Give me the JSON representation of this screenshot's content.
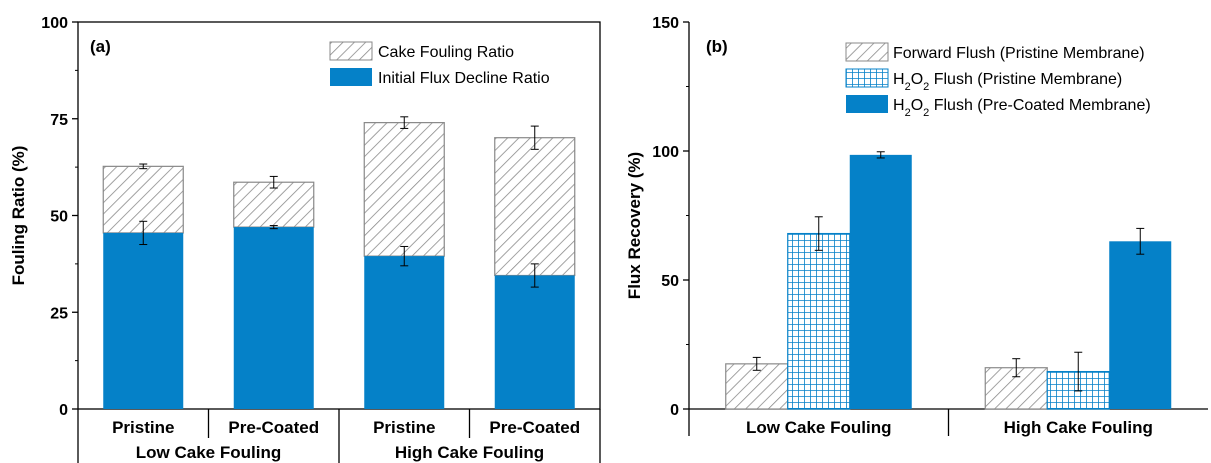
{
  "chart_data": [
    {
      "type": "bar",
      "stacked": true,
      "panel_label": "(a)",
      "ylabel": "Fouling Ratio (%)",
      "ylim": [
        0,
        100
      ],
      "yticks": [
        0,
        25,
        50,
        75,
        100
      ],
      "categories": [
        "Pristine",
        "Pre-Coated",
        "Pristine",
        "Pre-Coated"
      ],
      "groups": [
        {
          "label": "Low Cake Fouling",
          "members": [
            0,
            1
          ]
        },
        {
          "label": "High Cake Fouling",
          "members": [
            2,
            3
          ]
        }
      ],
      "legend_position": "top-right",
      "series": [
        {
          "name": "Initial Flux Decline Ratio",
          "values": [
            45.5,
            47.0,
            39.5,
            34.5
          ],
          "errors": [
            3.0,
            0.4,
            2.5,
            3.0
          ],
          "color": "#0581c8",
          "pattern": "solid"
        },
        {
          "name": "Cake Fouling Ratio",
          "values": [
            17.2,
            11.6,
            34.5,
            35.6
          ],
          "errors": [
            0.6,
            1.5,
            1.5,
            3.0
          ],
          "color": "#ffffff",
          "pattern": "diagonal-hatch"
        }
      ],
      "totals": [
        62.7,
        58.6,
        74.0,
        70.1
      ],
      "grid": false
    },
    {
      "type": "bar",
      "panel_label": "(b)",
      "ylabel": "Flux Recovery (%)",
      "ylim": [
        0,
        150
      ],
      "yticks": [
        0,
        50,
        100,
        150
      ],
      "categories": [
        "Low Cake Fouling",
        "High Cake Fouling"
      ],
      "legend_position": "top-right",
      "series": [
        {
          "name": "Forward Flush (Pristine Membrane)",
          "values": [
            17.5,
            16.0
          ],
          "errors": [
            2.5,
            3.5
          ],
          "color": "#ffffff",
          "pattern": "diagonal-hatch"
        },
        {
          "name": "H2O2 Flush (Pristine Membrane)",
          "values": [
            68.0,
            14.5
          ],
          "errors": [
            6.5,
            7.5
          ],
          "color": "#0581c8",
          "pattern": "grid-hatch"
        },
        {
          "name": "H2O2 Flush (Pre-Coated Membrane)",
          "values": [
            98.5,
            65.0
          ],
          "errors": [
            1.2,
            5.0
          ],
          "color": "#0581c8",
          "pattern": "solid"
        }
      ],
      "grid": false
    }
  ]
}
